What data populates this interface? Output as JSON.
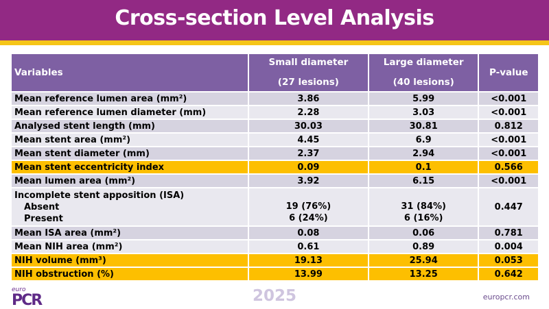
{
  "header": {
    "title": "Cross-section Level Analysis"
  },
  "colors": {
    "header_bg": "#922984",
    "band": "#f5c518",
    "table_header": "#7e60a3",
    "row_odd": "#d6d3e0",
    "row_even": "#e9e8ef",
    "highlight": "#fdbf00"
  },
  "table": {
    "columns": {
      "variables": "Variables",
      "small_line1": "Small diameter",
      "small_line2": "(27 lesions)",
      "large_line1": "Large diameter",
      "large_line2": "(40 lesions)",
      "pvalue": "P-value"
    },
    "rows": [
      {
        "label": "Mean reference lumen area (mm²)",
        "small": "3.86",
        "large": "5.99",
        "p": "<0.001",
        "highlight": false
      },
      {
        "label": "Mean reference lumen diameter (mm)",
        "small": "2.28",
        "large": "3.03",
        "p": "<0.001",
        "highlight": false
      },
      {
        "label": "Analysed stent length (mm)",
        "small": "30.03",
        "large": "30.81",
        "p": "0.812",
        "highlight": false
      },
      {
        "label": "Mean stent area (mm²)",
        "small": "4.45",
        "large": "6.9",
        "p": "<0.001",
        "highlight": false
      },
      {
        "label": "Mean stent diameter (mm)",
        "small": "2.37",
        "large": "2.94",
        "p": "<0.001",
        "highlight": false
      },
      {
        "label": "Mean stent eccentricity index",
        "small": "0.09",
        "large": "0.1",
        "p": "0.566",
        "highlight": true
      },
      {
        "label": "Mean lumen area (mm²)",
        "small": "3.92",
        "large": "6.15",
        "p": "<0.001",
        "highlight": false
      }
    ],
    "isa": {
      "label": "Incomplete stent apposition (ISA)",
      "absent_label": "Absent",
      "present_label": "Present",
      "small_absent": "19 (76%)",
      "small_present": "6 (24%)",
      "large_absent": "31 (84%)",
      "large_present": "6 (16%)",
      "p": "0.447"
    },
    "rows_after": [
      {
        "label": "Mean ISA area (mm²)",
        "small": "0.08",
        "large": "0.06",
        "p": "0.781",
        "highlight": false
      },
      {
        "label": "Mean NIH area (mm²)",
        "small": "0.61",
        "large": "0.89",
        "p": "0.004",
        "highlight": false
      },
      {
        "label": "NIH volume (mm³)",
        "small": "19.13",
        "large": "25.94",
        "p": "0.053",
        "highlight": true
      },
      {
        "label": "NIH obstruction (%)",
        "small": "13.99",
        "large": "13.25",
        "p": "0.642",
        "highlight": true
      }
    ]
  },
  "footer": {
    "logo_small": "euro",
    "logo_main": "PCR",
    "year": "2025",
    "website": "europcr.com"
  }
}
